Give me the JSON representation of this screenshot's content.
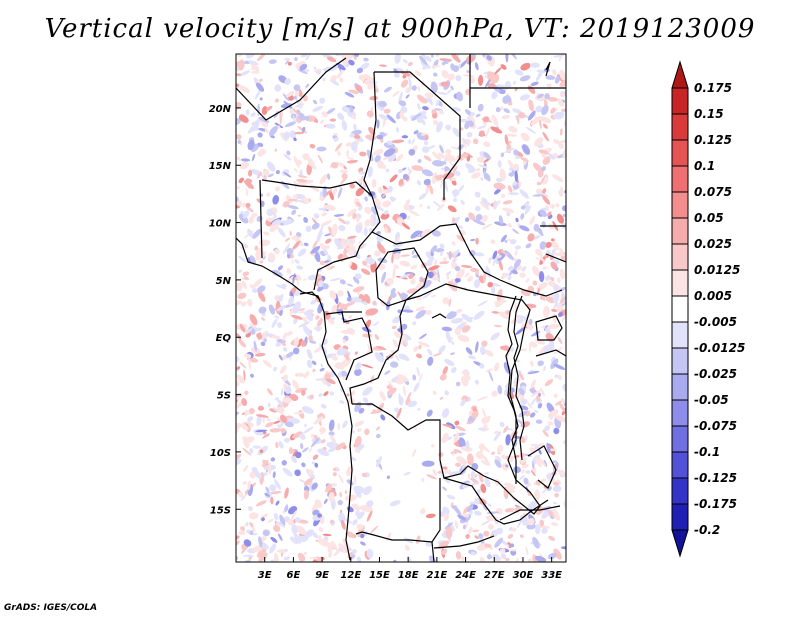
{
  "title": "Vertical velocity [m/s] at 900hPa, VT: 2019123009",
  "footer": "GrADS: IGES/COLA",
  "map": {
    "lat_labels": [
      {
        "lat": 20,
        "label": "20N"
      },
      {
        "lat": 15,
        "label": "15N"
      },
      {
        "lat": 10,
        "label": "10N"
      },
      {
        "lat": 5,
        "label": "5N"
      },
      {
        "lat": 0,
        "label": "EQ"
      },
      {
        "lat": -5,
        "label": "5S"
      },
      {
        "lat": -10,
        "label": "10S"
      },
      {
        "lat": -15,
        "label": "15S"
      }
    ],
    "lon_labels": [
      {
        "lon": 3,
        "label": "3E"
      },
      {
        "lon": 6,
        "label": "6E"
      },
      {
        "lon": 9,
        "label": "9E"
      },
      {
        "lon": 12,
        "label": "12E"
      },
      {
        "lon": 15,
        "label": "15E"
      },
      {
        "lon": 18,
        "label": "18E"
      },
      {
        "lon": 21,
        "label": "21E"
      },
      {
        "lon": 24,
        "label": "24E"
      },
      {
        "lon": 27,
        "label": "27E"
      },
      {
        "lon": 30,
        "label": "30E"
      },
      {
        "lon": 33,
        "label": "33E"
      }
    ]
  },
  "colorbar": {
    "labels": [
      "0.175",
      "0.15",
      "0.125",
      "0.1",
      "0.075",
      "0.05",
      "0.025",
      "0.0125",
      "0.005",
      "-0.005",
      "-0.0125",
      "-0.025",
      "-0.05",
      "-0.075",
      "-0.1",
      "-0.125",
      "-0.175",
      "-0.2"
    ],
    "colors": [
      "#b01818",
      "#c82626",
      "#d93a3a",
      "#e65353",
      "#ee7070",
      "#f28e8e",
      "#f6acac",
      "#f9c8c8",
      "#fce4e4",
      "#ffffff",
      "#e2e2fa",
      "#c6c6f4",
      "#aaaaef",
      "#8e8eea",
      "#7070e2",
      "#5252d8",
      "#3434c8",
      "#2020b4",
      "#12129a"
    ]
  }
}
